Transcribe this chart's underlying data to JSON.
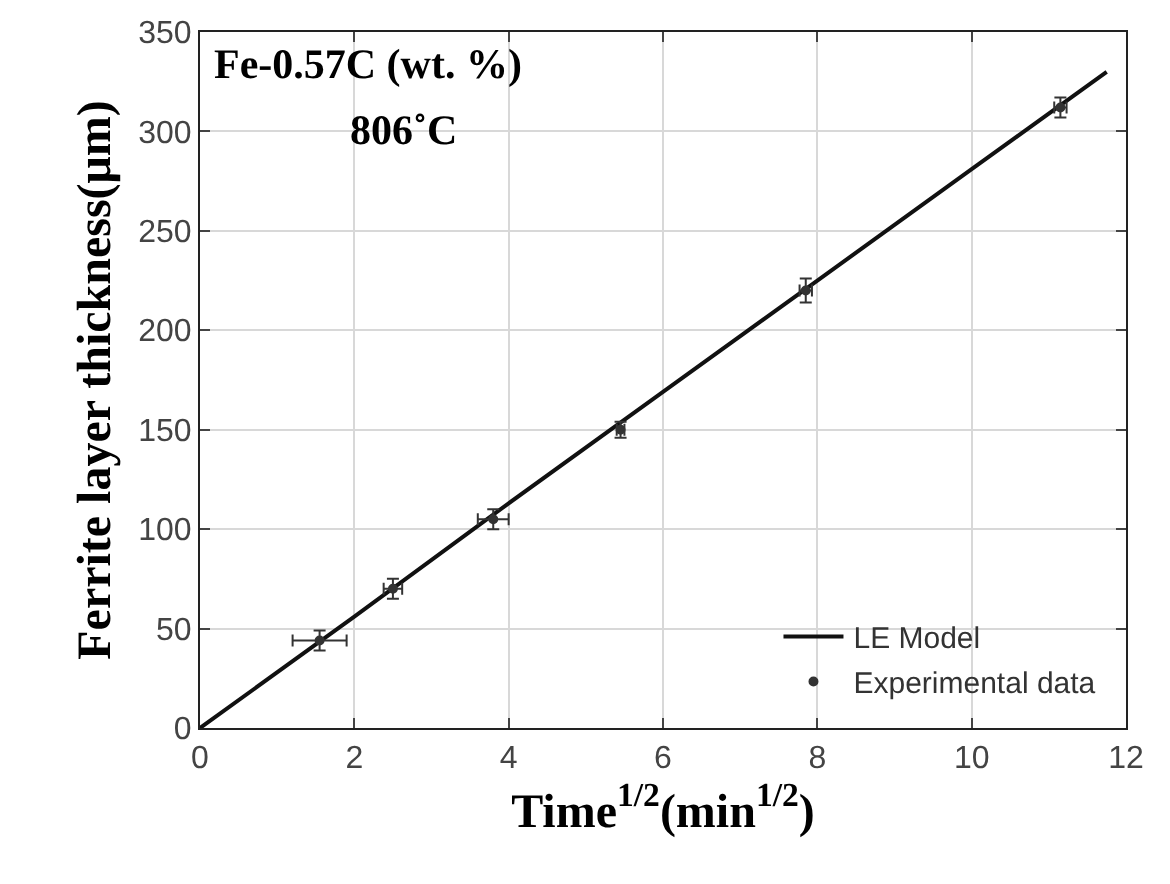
{
  "chart_data": {
    "type": "scatter",
    "xlabel": "Time$^{1/2}$(min$^{1/2}$)",
    "ylabel": "Ferrite layer thickness(μm)",
    "annotations": [
      "Fe-0.57C (wt. %)",
      "806˚C"
    ],
    "series": [
      {
        "name": "LE Model",
        "type": "line",
        "color": "#111111",
        "marker": "none",
        "line_style": "solid",
        "x": [
          0,
          2,
          4,
          6,
          8,
          10,
          11.75
        ],
        "values": [
          0,
          56,
          113,
          169,
          225,
          281,
          330
        ]
      },
      {
        "name": "Experimental data",
        "color": "#333333",
        "x": [
          1.55,
          2.5,
          3.8,
          5.45,
          7.85,
          11.15
        ],
        "values": [
          44,
          70,
          105,
          150,
          220,
          312
        ],
        "errors": [
          5,
          5,
          5,
          4,
          6,
          5
        ],
        "xerrors": [
          0.35,
          0.12,
          0.2,
          0.05,
          0.08,
          0.08
        ]
      }
    ],
    "xlim": [
      0,
      12
    ],
    "xticks": [
      0,
      2,
      4,
      6,
      8,
      10,
      12
    ],
    "ylim": [
      0,
      350
    ],
    "yticks": [
      0,
      50,
      100,
      150,
      200,
      250,
      300,
      350
    ],
    "grid": true,
    "legend": "bottom right"
  }
}
